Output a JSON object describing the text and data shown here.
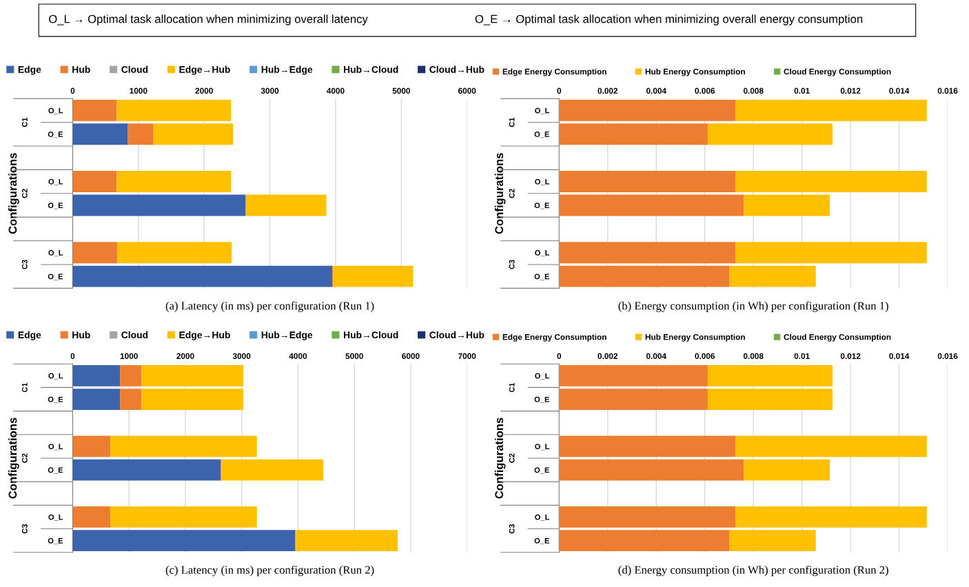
{
  "chart_data": [
    {
      "type": "bar",
      "orientation": "horizontal",
      "stacked": true,
      "title": "(a) Latency (in ms) per configuration (Run 1)",
      "ylabel": "Configurations",
      "categories": [
        "O_L",
        "O_E",
        null,
        "O_L",
        "O_E",
        null,
        "O_L",
        "O_E"
      ],
      "xlim": [
        0,
        6000
      ],
      "xticks": [
        0,
        1000,
        2000,
        3000,
        4000,
        5000,
        6000
      ],
      "grid": "x",
      "legend": "top",
      "series": [
        {
          "name": "Edge",
          "color": "#3c64ad",
          "values": [
            0,
            840,
            null,
            0,
            2630,
            null,
            0,
            3950
          ]
        },
        {
          "name": "Hub",
          "color": "#ed7d31",
          "values": [
            670,
            390,
            null,
            670,
            10,
            null,
            680,
            10
          ]
        },
        {
          "name": "Cloud",
          "color": "#a5a5a5",
          "values": [
            0,
            0,
            null,
            0,
            0,
            null,
            0,
            0
          ]
        },
        {
          "name": "Edge→Hub",
          "color": "#ffc000",
          "values": [
            1740,
            1210,
            null,
            1740,
            1220,
            null,
            1740,
            1220
          ]
        },
        {
          "name": "Hub→Edge",
          "color": "#5b9bd5",
          "values": [
            0,
            0,
            null,
            0,
            0,
            null,
            0,
            0
          ]
        },
        {
          "name": "Hub→Cloud",
          "color": "#70ad47",
          "values": [
            0,
            0,
            null,
            0,
            0,
            null,
            0,
            0
          ]
        },
        {
          "name": "Cloud→Hub",
          "color": "#1f2f6b",
          "values": [
            0,
            0,
            null,
            0,
            0,
            null,
            0,
            0
          ]
        }
      ],
      "annotations": [
        "C1",
        "C2",
        "C3",
        "O_L → Optimal task allocation when minimizing overall latency",
        "O_E → Optimal task allocation when minimizing overall energy consumption"
      ]
    },
    {
      "type": "bar",
      "orientation": "horizontal",
      "stacked": true,
      "title": "(b) Energy consumption (in Wh) per configuration (Run 1)",
      "ylabel": "Configurations",
      "categories": [
        "O_L",
        "O_E",
        null,
        "O_L",
        "O_E",
        null,
        "O_L",
        "O_E"
      ],
      "xlim": [
        0,
        0.016
      ],
      "xticks": [
        0,
        0.002,
        0.004,
        0.006,
        0.008,
        0.01,
        0.012,
        0.014,
        0.016
      ],
      "grid": "x",
      "legend": "top",
      "series": [
        {
          "name": "Edge Energy Consumption",
          "color": "#ed7d31",
          "values": [
            0.00726,
            0.00612,
            null,
            0.00726,
            0.00761,
            null,
            0.00726,
            0.00702
          ]
        },
        {
          "name": "Hub Energy Consumption",
          "color": "#ffc000",
          "values": [
            0.00788,
            0.00514,
            null,
            0.00788,
            0.00354,
            null,
            0.00788,
            0.00355
          ]
        },
        {
          "name": "Cloud Energy Consumption",
          "color": "#70ad47",
          "values": [
            0,
            0,
            null,
            0,
            0,
            null,
            0,
            0
          ]
        }
      ],
      "annotations": [
        "C1",
        "C2",
        "C3"
      ]
    },
    {
      "type": "bar",
      "orientation": "horizontal",
      "stacked": true,
      "title": "(c) Latency (in ms) per configuration (Run 2)",
      "ylabel": "Configurations",
      "categories": [
        "O_L",
        "O_E",
        null,
        "O_L",
        "O_E",
        null,
        "O_L",
        "O_E"
      ],
      "xlim": [
        0,
        7000
      ],
      "xticks": [
        0,
        1000,
        2000,
        3000,
        4000,
        5000,
        6000,
        7000
      ],
      "grid": "x",
      "legend": "top",
      "series": [
        {
          "name": "Edge",
          "color": "#3c64ad",
          "values": [
            840,
            840,
            null,
            0,
            2630,
            null,
            0,
            3950
          ]
        },
        {
          "name": "Hub",
          "color": "#ed7d31",
          "values": [
            380,
            380,
            null,
            670,
            10,
            null,
            670,
            10
          ]
        },
        {
          "name": "Cloud",
          "color": "#a5a5a5",
          "values": [
            0,
            0,
            null,
            0,
            0,
            null,
            0,
            0
          ]
        },
        {
          "name": "Edge→Hub",
          "color": "#ffc000",
          "values": [
            1810,
            1810,
            null,
            2600,
            1810,
            null,
            2600,
            1810
          ]
        },
        {
          "name": "Hub→Edge",
          "color": "#5b9bd5",
          "values": [
            0,
            0,
            null,
            0,
            0,
            null,
            0,
            0
          ]
        },
        {
          "name": "Hub→Cloud",
          "color": "#70ad47",
          "values": [
            0,
            0,
            null,
            0,
            0,
            null,
            0,
            0
          ]
        },
        {
          "name": "Cloud→Hub",
          "color": "#1f2f6b",
          "values": [
            0,
            0,
            null,
            0,
            0,
            null,
            0,
            0
          ]
        }
      ],
      "annotations": [
        "C1",
        "C2",
        "C3"
      ]
    },
    {
      "type": "bar",
      "orientation": "horizontal",
      "stacked": true,
      "title": "(d) Energy consumption (in Wh) per configuration (Run 2)",
      "ylabel": "Configurations",
      "categories": [
        "O_L",
        "O_E",
        null,
        "O_L",
        "O_E",
        null,
        "O_L",
        "O_E"
      ],
      "xlim": [
        0,
        0.016
      ],
      "xticks": [
        0,
        0.002,
        0.004,
        0.006,
        0.008,
        0.01,
        0.012,
        0.014,
        0.016
      ],
      "grid": "x",
      "legend": "top",
      "series": [
        {
          "name": "Edge Energy Consumption",
          "color": "#ed7d31",
          "values": [
            0.00612,
            0.00612,
            null,
            0.00726,
            0.00761,
            null,
            0.00726,
            0.00702
          ]
        },
        {
          "name": "Hub Energy Consumption",
          "color": "#ffc000",
          "values": [
            0.00514,
            0.00514,
            null,
            0.00788,
            0.00354,
            null,
            0.00788,
            0.00355
          ]
        },
        {
          "name": "Cloud Energy Consumption",
          "color": "#70ad47",
          "values": [
            0,
            0,
            null,
            0,
            0,
            null,
            0,
            0
          ]
        }
      ],
      "annotations": [
        "C1",
        "C2",
        "C3"
      ]
    }
  ]
}
